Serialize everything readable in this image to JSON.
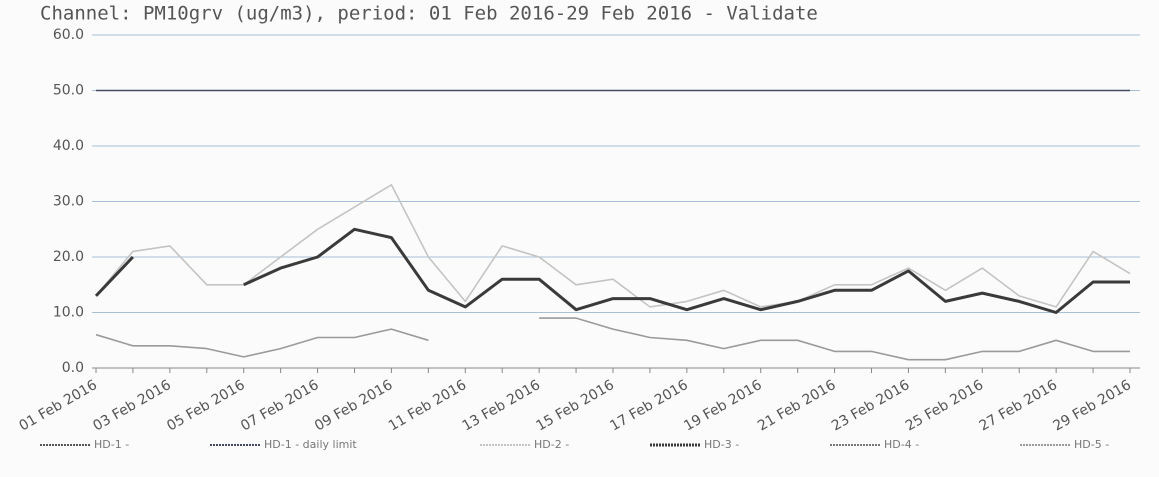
{
  "chart_data": {
    "type": "line",
    "title": "Channel: PM10grv (ug/m3), period: 01 Feb 2016-29 Feb 2016 - Validate",
    "categories": [
      "01 Feb 2016",
      null,
      "03 Feb 2016",
      null,
      "05 Feb 2016",
      null,
      "07 Feb 2016",
      null,
      "09 Feb 2016",
      null,
      "11 Feb 2016",
      null,
      "13 Feb 2016",
      null,
      "15 Feb 2016",
      null,
      "17 Feb 2016",
      null,
      "19 Feb 2016",
      null,
      "21 Feb 2016",
      null,
      "23 Feb 2016",
      null,
      "25 Feb 2016",
      null,
      "27 Feb 2016",
      null,
      "29 Feb 2016"
    ],
    "series": [
      {
        "name": "HD-1 -",
        "color": "#555555",
        "values": [
          null,
          null,
          null,
          null,
          null,
          null,
          null,
          null,
          null,
          null,
          null,
          null,
          null,
          null,
          null,
          null,
          null,
          null,
          null,
          null,
          null,
          null,
          null,
          null,
          null,
          null,
          null,
          null,
          null
        ]
      },
      {
        "name": "HD-1 - daily limit",
        "color": "#444a66",
        "values": [
          50,
          50,
          50,
          50,
          50,
          50,
          50,
          50,
          50,
          50,
          50,
          50,
          50,
          50,
          50,
          50,
          50,
          50,
          50,
          50,
          50,
          50,
          50,
          50,
          50,
          50,
          50,
          50,
          50
        ]
      },
      {
        "name": "HD-2 -",
        "color": "#c4c4c4",
        "values": [
          13,
          21,
          22,
          15,
          15,
          20,
          25,
          29,
          33,
          20,
          12,
          22,
          20,
          15,
          16,
          11,
          12,
          14,
          11,
          12,
          15,
          15,
          18,
          14,
          18,
          13,
          11,
          21,
          17
        ]
      },
      {
        "name": "HD-3 -",
        "color": "#3a3a3a",
        "values": [
          13,
          20,
          null,
          null,
          15,
          18,
          20,
          25,
          23.5,
          14,
          11,
          16,
          16,
          10.5,
          12.5,
          12.5,
          10.5,
          12.5,
          10.5,
          12,
          14,
          14,
          17.5,
          12,
          13.5,
          12,
          10,
          15.5,
          15.5
        ]
      },
      {
        "name": "HD-4 -",
        "color": "#777777",
        "values": [
          null,
          null,
          null,
          null,
          null,
          null,
          null,
          null,
          null,
          null,
          null,
          null,
          null,
          null,
          null,
          null,
          null,
          null,
          null,
          null,
          null,
          null,
          null,
          null,
          null,
          null,
          null,
          null,
          null
        ]
      },
      {
        "name": "HD-5 -",
        "color": "#9a9a9a",
        "values": [
          6,
          4,
          4,
          3.5,
          2,
          3.5,
          5.5,
          5.5,
          7,
          5,
          null,
          null,
          9,
          9,
          7,
          5.5,
          5,
          3.5,
          5,
          5,
          3,
          3,
          1.5,
          1.5,
          3,
          3,
          5,
          3,
          3
        ]
      }
    ],
    "ylim": [
      0,
      60
    ],
    "yticks": [
      {
        "value": 0,
        "label": "0.0"
      },
      {
        "value": 10,
        "label": "10.0"
      },
      {
        "value": 20,
        "label": "20.0"
      },
      {
        "value": 30,
        "label": "30.0"
      },
      {
        "value": 40,
        "label": "40.0"
      },
      {
        "value": 50,
        "label": "50.0"
      },
      {
        "value": 60,
        "label": "60.0"
      }
    ],
    "grid": true
  }
}
